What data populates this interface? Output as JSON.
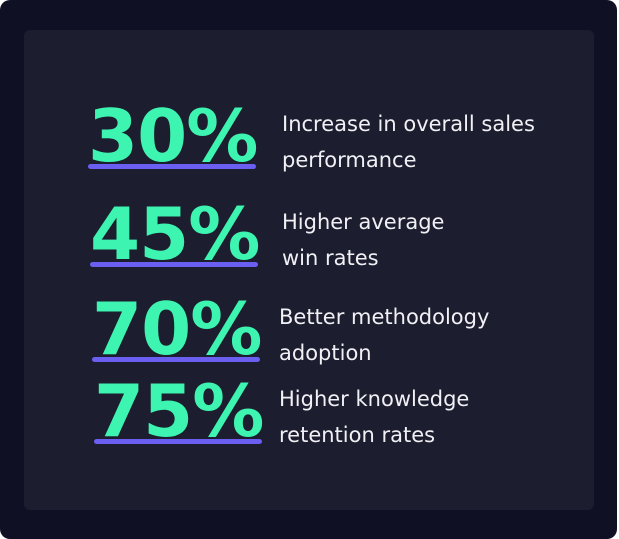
{
  "stats": [
    {
      "value": "30%",
      "label_lines": [
        "Increase in overall sales",
        "performance"
      ]
    },
    {
      "value": "45%",
      "label_lines": [
        "Higher average",
        "win rates"
      ]
    },
    {
      "value": "70%",
      "label_lines": [
        "Better methodology",
        "adoption"
      ]
    },
    {
      "value": "75%",
      "label_lines": [
        "Higher knowledge",
        "retention rates"
      ]
    }
  ]
}
